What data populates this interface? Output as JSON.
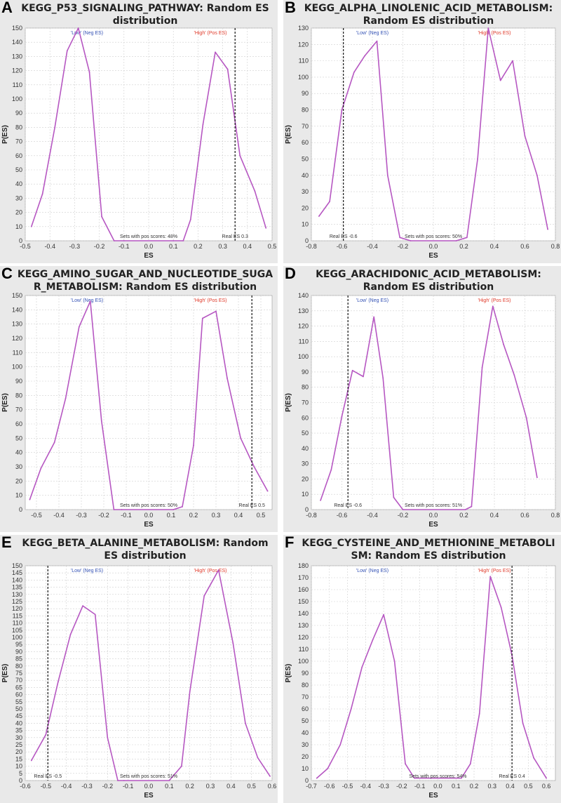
{
  "colors": {
    "line": "#b657c2",
    "grid": "#cfcfcf",
    "plot_bg": "#ffffff",
    "panel_bg": "#e9e9e9",
    "low": "#3553b5",
    "high": "#e03a2a"
  },
  "chart_data": [
    {
      "letter": "A",
      "title_lines": [
        "KEGG_P53_SIGNALING_PATHWAY: Random ES",
        "distribution"
      ],
      "type": "line",
      "xlabel": "ES",
      "ylabel": "P(ES)",
      "xlim": [
        -0.5,
        0.5
      ],
      "ylim": [
        0,
        150
      ],
      "xticks": [
        "-0.5",
        "-0.4",
        "-0.3",
        "-0.2",
        "-0.1",
        "0.0",
        "0.1",
        "0.2",
        "0.3",
        "0.4",
        "0.5"
      ],
      "yticks": [
        "0",
        "10",
        "20",
        "30",
        "40",
        "50",
        "60",
        "70",
        "80",
        "90",
        "100",
        "110",
        "120",
        "130",
        "140",
        "150"
      ],
      "x": [
        -0.475,
        -0.43,
        -0.38,
        -0.33,
        -0.285,
        -0.24,
        -0.19,
        -0.14,
        -0.1,
        0.1,
        0.14,
        0.17,
        0.22,
        0.27,
        0.32,
        0.37,
        0.43,
        0.475
      ],
      "y": [
        10,
        33,
        80,
        134,
        150,
        119,
        17,
        0,
        0,
        0,
        0,
        15,
        82,
        133,
        121,
        60,
        35,
        9
      ],
      "real_es_value": 0.35,
      "low_label": "'Low' (Neg ES)",
      "high_label": "'High' (Pos ES)",
      "sets_text": "Sets with pos scores: 48%",
      "real_es_text": "Real ES 0.3"
    },
    {
      "letter": "B",
      "title_lines": [
        "KEGG_ALPHA_LINOLENIC_ACID_METABOLISM:",
        "Random ES distribution"
      ],
      "type": "line",
      "xlabel": "ES",
      "ylabel": "P(ES)",
      "xlim": [
        -0.8,
        0.8
      ],
      "ylim": [
        0,
        130
      ],
      "xticks": [
        "-0.8",
        "-0.6",
        "-0.4",
        "-0.2",
        "0.0",
        "0.2",
        "0.4",
        "0.6",
        "0.8"
      ],
      "yticks": [
        "0",
        "10",
        "20",
        "30",
        "40",
        "50",
        "60",
        "70",
        "80",
        "90",
        "100",
        "110",
        "120",
        "130"
      ],
      "x": [
        -0.75,
        -0.68,
        -0.6,
        -0.52,
        -0.45,
        -0.37,
        -0.3,
        -0.22,
        -0.15,
        0.15,
        0.22,
        0.29,
        0.36,
        0.44,
        0.52,
        0.6,
        0.68,
        0.75
      ],
      "y": [
        15,
        24,
        80,
        103,
        113,
        122,
        40,
        2,
        0,
        0,
        2,
        50,
        130,
        98,
        110,
        64,
        40,
        7
      ],
      "real_es_value": -0.59,
      "low_label": "'Low' (Neg ES)",
      "high_label": "'High' (Pos ES)",
      "sets_text": "Sets with pos scores: 50%",
      "real_es_text": "Real ES -0.6"
    },
    {
      "letter": "C",
      "title_lines": [
        "KEGG_AMINO_SUGAR_AND_NUCLEOTIDE_SUGA",
        "R_METABOLISM: Random ES distribution"
      ],
      "type": "line",
      "xlabel": "ES",
      "ylabel": "P(ES)",
      "xlim": [
        -0.55,
        0.55
      ],
      "ylim": [
        0,
        150
      ],
      "xticks": [
        "-0.5",
        "-0.4",
        "-0.3",
        "-0.2",
        "-0.1",
        "0.0",
        "0.1",
        "0.2",
        "0.3",
        "0.4",
        "0.5"
      ],
      "yticks": [
        "0",
        "10",
        "20",
        "30",
        "40",
        "50",
        "60",
        "70",
        "80",
        "90",
        "100",
        "110",
        "120",
        "130",
        "140",
        "150"
      ],
      "x": [
        -0.53,
        -0.48,
        -0.42,
        -0.37,
        -0.31,
        -0.26,
        -0.21,
        -0.155,
        -0.12,
        0.11,
        0.15,
        0.2,
        0.24,
        0.3,
        0.35,
        0.41,
        0.47,
        0.53
      ],
      "y": [
        7,
        29,
        47,
        78,
        128,
        146,
        62,
        0,
        0,
        0,
        2,
        45,
        134,
        139,
        92,
        50,
        30,
        13
      ],
      "real_es_value": 0.46,
      "low_label": "'Low' (Neg ES)",
      "high_label": "'High' (Pos ES)",
      "sets_text": "Sets with pos scores: 50%",
      "real_es_text": "Real ES 0.5"
    },
    {
      "letter": "D",
      "title_lines": [
        "KEGG_ARACHIDONIC_ACID_METABOLISM:",
        "Random ES distribution"
      ],
      "type": "line",
      "xlabel": "ES",
      "ylabel": "P(ES)",
      "xlim": [
        -0.8,
        0.8
      ],
      "ylim": [
        0,
        140
      ],
      "xticks": [
        "-0.8",
        "-0.6",
        "-0.4",
        "-0.2",
        "0.0",
        "0.2",
        "0.4",
        "0.6",
        "0.8"
      ],
      "yticks": [
        "0",
        "10",
        "20",
        "30",
        "40",
        "50",
        "60",
        "70",
        "80",
        "90",
        "100",
        "110",
        "120",
        "130",
        "140"
      ],
      "x": [
        -0.74,
        -0.67,
        -0.6,
        -0.53,
        -0.46,
        -0.39,
        -0.33,
        -0.26,
        -0.2,
        0.21,
        0.25,
        0.32,
        0.39,
        0.46,
        0.53,
        0.61,
        0.68
      ],
      "y": [
        6,
        26,
        61,
        91,
        87,
        126,
        86,
        8,
        0,
        0,
        2,
        93,
        133,
        108,
        88,
        60,
        21
      ],
      "real_es_value": -0.56,
      "low_label": "'Low' (Neg ES)",
      "high_label": "'High' (Pos ES)",
      "sets_text": "Sets with pos scores: 51%",
      "real_es_text": "Real ES -0.6"
    },
    {
      "letter": "E",
      "title_lines": [
        "KEGG_BETA_ALANINE_METABOLISM: Random",
        "ES distribution"
      ],
      "type": "line",
      "xlabel": "ES",
      "ylabel": "P(ES)",
      "xlim": [
        -0.6,
        0.6
      ],
      "ylim": [
        0,
        150
      ],
      "xticks": [
        "-0.6",
        "-0.5",
        "-0.4",
        "-0.3",
        "-0.2",
        "-0.1",
        "0.0",
        "0.1",
        "0.2",
        "0.3",
        "0.4",
        "0.5",
        "0.6"
      ],
      "yticks": [
        "0",
        "5",
        "10",
        "15",
        "20",
        "25",
        "30",
        "35",
        "40",
        "45",
        "50",
        "55",
        "60",
        "65",
        "70",
        "75",
        "80",
        "85",
        "90",
        "95",
        "100",
        "105",
        "110",
        "115",
        "120",
        "125",
        "130",
        "135",
        "140",
        "145",
        "150"
      ],
      "x": [
        -0.57,
        -0.5,
        -0.44,
        -0.38,
        -0.32,
        -0.26,
        -0.2,
        -0.15,
        -0.12,
        0.1,
        0.16,
        0.2,
        0.27,
        0.34,
        0.41,
        0.47,
        0.53,
        0.59
      ],
      "y": [
        14,
        32,
        69,
        102,
        122,
        116,
        30,
        0,
        0,
        0,
        10,
        62,
        129,
        147,
        96,
        40,
        16,
        3
      ],
      "real_es_value": -0.49,
      "low_label": "'Low' (Neg ES)",
      "high_label": "'High' (Pos ES)",
      "sets_text": "Sets with pos scores: 51%",
      "real_es_text": "Real ES -0.5"
    },
    {
      "letter": "F",
      "title_lines": [
        "KEGG_CYSTEINE_AND_METHIONINE_METABOLI",
        "SM: Random ES distribution"
      ],
      "type": "line",
      "xlabel": "ES",
      "ylabel": "P(ES)",
      "xlim": [
        -0.7,
        0.65
      ],
      "ylim": [
        0,
        180
      ],
      "xticks": [
        "-0.7",
        "-0.6",
        "-0.5",
        "-0.4",
        "-0.3",
        "-0.2",
        "-0.1",
        "0.0",
        "0.1",
        "0.2",
        "0.3",
        "0.4",
        "0.5",
        "0.6"
      ],
      "yticks": [
        "0",
        "10",
        "20",
        "30",
        "40",
        "50",
        "60",
        "70",
        "80",
        "90",
        "100",
        "110",
        "120",
        "130",
        "140",
        "150",
        "160",
        "170",
        "180"
      ],
      "x": [
        -0.67,
        -0.61,
        -0.54,
        -0.48,
        -0.42,
        -0.36,
        -0.3,
        -0.24,
        -0.18,
        -0.13,
        0.13,
        0.18,
        0.23,
        0.29,
        0.35,
        0.41,
        0.47,
        0.53,
        0.6
      ],
      "y": [
        2,
        10,
        30,
        60,
        95,
        118,
        139,
        100,
        14,
        2,
        2,
        14,
        56,
        171,
        145,
        105,
        48,
        19,
        2
      ],
      "real_es_value": 0.41,
      "low_label": "'Low' (Neg ES)",
      "high_label": "'High' (Pos ES)",
      "sets_text": "Sets with pos scores: 54%",
      "real_es_text": "Real ES 0.4"
    }
  ]
}
